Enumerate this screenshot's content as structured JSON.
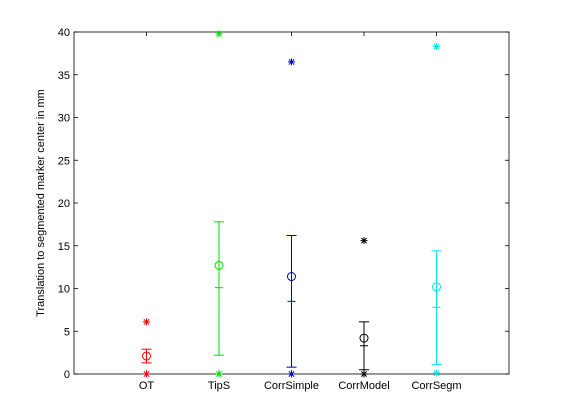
{
  "chart_data": {
    "type": "scatter",
    "title": "",
    "xlabel": "",
    "ylabel": "Translation to segmented marker center in mm",
    "ylim": [
      0,
      40
    ],
    "yticks": [
      0,
      5,
      10,
      15,
      20,
      25,
      30,
      35,
      40
    ],
    "grid": false,
    "categories": [
      "OT",
      "TipS",
      "CorrSimple",
      "CorrModel",
      "CorrSegm"
    ],
    "series": [
      {
        "color": "#ff0000",
        "min": 0.0,
        "lower": 1.3,
        "mean": 2.1,
        "upper": 2.9,
        "max": 6.1
      },
      {
        "color": "#00dd00",
        "min": 0.0,
        "lower": 2.2,
        "mean": 12.7,
        "upper": 17.8,
        "max": 39.8,
        "mid_tick": 10.1
      },
      {
        "color": "#0000bb",
        "min": 0.0,
        "lower": 0.8,
        "mean": 11.4,
        "upper": 16.2,
        "max": 36.5,
        "mid_tick": 8.5
      },
      {
        "color": "#000000",
        "min": 0.0,
        "lower": 0.5,
        "mean": 4.2,
        "upper": 6.1,
        "max": 15.6,
        "mid_tick": 3.3
      },
      {
        "color": "#00e5e5",
        "min": 0.1,
        "lower": 1.1,
        "mean": 10.2,
        "upper": 14.4,
        "max": 38.3,
        "mid_tick": 7.8
      }
    ]
  }
}
